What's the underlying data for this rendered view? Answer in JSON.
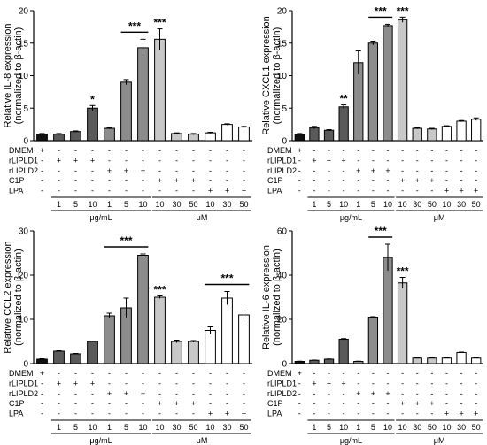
{
  "chart_data": [
    {
      "type": "bar",
      "ylabel": [
        "Relative IL-8 expression",
        "(normalized to β-actin)"
      ],
      "ylim": [
        0,
        20
      ],
      "yticks": [
        0,
        5,
        10,
        15,
        20
      ],
      "values": [
        1.0,
        1.0,
        1.4,
        5.0,
        1.9,
        9.0,
        14.3,
        15.6,
        1.1,
        1.0,
        1.2,
        2.5,
        2.1
      ],
      "errors": [
        0.1,
        0.1,
        0.1,
        0.4,
        0.1,
        0.4,
        1.3,
        1.6,
        0.1,
        0.1,
        0.1,
        0.1,
        0.1
      ],
      "significance": [
        {
          "bar": 3,
          "label": "*"
        },
        {
          "bar": 5,
          "to": 6,
          "label": "***"
        },
        {
          "bar": 7,
          "label": "***"
        }
      ]
    },
    {
      "type": "bar",
      "ylabel": [
        "Relative CXCL1 expression",
        "(normalized to β-actin)"
      ],
      "ylim": [
        0,
        20
      ],
      "yticks": [
        0,
        5,
        10,
        15,
        20
      ],
      "values": [
        1.0,
        2.0,
        1.6,
        5.2,
        12.0,
        15.0,
        17.7,
        18.6,
        1.9,
        1.8,
        2.2,
        3.0,
        3.3
      ],
      "errors": [
        0.1,
        0.2,
        0.1,
        0.3,
        1.8,
        0.3,
        0.2,
        0.4,
        0.1,
        0.1,
        0.1,
        0.1,
        0.2
      ],
      "significance": [
        {
          "bar": 3,
          "label": "**"
        },
        {
          "bar": 5,
          "to": 6,
          "label": "***"
        },
        {
          "bar": 7,
          "label": "***"
        }
      ]
    },
    {
      "type": "bar",
      "ylabel": [
        "Relative CCL2 expression",
        "(normalized to β-actin)"
      ],
      "ylim": [
        0,
        30
      ],
      "yticks": [
        0,
        10,
        20,
        30
      ],
      "values": [
        1.0,
        2.8,
        2.2,
        5.0,
        10.8,
        12.6,
        24.5,
        15.0,
        5.0,
        5.0,
        7.5,
        14.8,
        11.0
      ],
      "errors": [
        0.1,
        0.1,
        0.1,
        0.1,
        0.6,
        2.2,
        0.3,
        0.3,
        0.3,
        0.2,
        0.8,
        1.5,
        0.9
      ],
      "significance": [
        {
          "bar": 4,
          "to": 6,
          "label": "***"
        },
        {
          "bar": 7,
          "label": "***"
        },
        {
          "bar": 10,
          "to": 12,
          "label": "***"
        }
      ]
    },
    {
      "type": "bar",
      "ylabel": [
        "Relative IL-6 expression",
        "(normalized to β-actin)"
      ],
      "ylim": [
        0,
        60
      ],
      "yticks": [
        0,
        20,
        40,
        60
      ],
      "values": [
        1.0,
        1.5,
        2.0,
        11.0,
        1.0,
        21.0,
        48.0,
        36.5,
        2.5,
        2.5,
        2.5,
        5.0,
        2.5
      ],
      "errors": [
        0.1,
        0.1,
        0.1,
        0.3,
        0.1,
        0.2,
        6.0,
        2.5,
        0.1,
        0.1,
        0.1,
        0.2,
        0.1
      ],
      "significance": [
        {
          "bar": 5,
          "to": 6,
          "label": "***"
        },
        {
          "bar": 7,
          "label": "***"
        }
      ]
    }
  ],
  "bar_colors": [
    "#111111",
    "#5a5a5a",
    "#5a5a5a",
    "#5a5a5a",
    "#8c8c8c",
    "#8c8c8c",
    "#8c8c8c",
    "#c8c8c8",
    "#c8c8c8",
    "#c8c8c8",
    "#ffffff",
    "#ffffff",
    "#ffffff"
  ],
  "conditions": {
    "labels": [
      "DMEM",
      "rLIPLD1",
      "rLIPLD2",
      "C1P",
      "LPA"
    ],
    "rows": [
      [
        "+",
        "-",
        "-",
        "-",
        "-",
        "-",
        "-",
        "-",
        "-",
        "-",
        "-",
        "-",
        "-"
      ],
      [
        "-",
        "+",
        "+",
        "+",
        "-",
        "-",
        "-",
        "-",
        "-",
        "-",
        "-",
        "-",
        "-"
      ],
      [
        "-",
        "-",
        "-",
        "-",
        "+",
        "+",
        "+",
        "-",
        "-",
        "-",
        "-",
        "-",
        "-"
      ],
      [
        "-",
        "-",
        "-",
        "-",
        "-",
        "-",
        "-",
        "+",
        "+",
        "+",
        "-",
        "-",
        "-"
      ],
      [
        "-",
        "-",
        "-",
        "-",
        "-",
        "-",
        "-",
        "-",
        "-",
        "-",
        "+",
        "+",
        "+"
      ]
    ],
    "doses": [
      "1",
      "5",
      "10",
      "1",
      "5",
      "10",
      "10",
      "30",
      "50",
      "10",
      "30",
      "50"
    ],
    "units": [
      {
        "label": "μg/mL",
        "from": 1,
        "to": 6
      },
      {
        "label": "μM",
        "from": 7,
        "to": 12
      }
    ]
  }
}
